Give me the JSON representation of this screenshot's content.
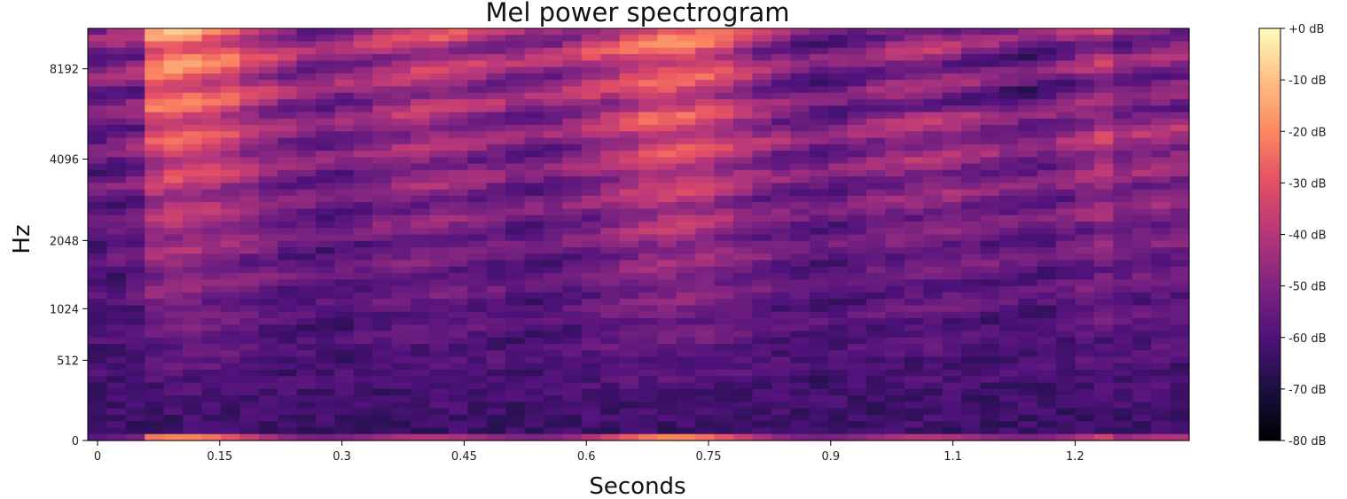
{
  "chart_data": {
    "type": "heatmap",
    "title": "Mel power spectrogram",
    "xlabel": "Seconds",
    "ylabel": "Hz",
    "colormap": "magma",
    "x_ticks": [
      {
        "value": 0,
        "label": "0"
      },
      {
        "value": 0.15,
        "label": "0.15"
      },
      {
        "value": 0.3,
        "label": "0.3"
      },
      {
        "value": 0.45,
        "label": "0.45"
      },
      {
        "value": 0.6,
        "label": "0.6"
      },
      {
        "value": 0.75,
        "label": "0.75"
      },
      {
        "value": 0.9,
        "label": "0.9"
      },
      {
        "value": 1.05,
        "label": "1.1"
      },
      {
        "value": 1.2,
        "label": "1.2"
      }
    ],
    "y_ticks": [
      {
        "value": 0,
        "label": "0"
      },
      {
        "value": 512,
        "label": "512"
      },
      {
        "value": 1024,
        "label": "1024"
      },
      {
        "value": 2048,
        "label": "2048"
      },
      {
        "value": 4096,
        "label": "4096"
      },
      {
        "value": 8192,
        "label": "8192"
      }
    ],
    "xlim": [
      -0.012,
      1.34
    ],
    "ylim": [
      0,
      11025
    ],
    "colorbar": {
      "range": [
        -80,
        0
      ],
      "ticks": [
        {
          "value": 0,
          "label": "+0 dB"
        },
        {
          "value": -10,
          "label": "-10 dB"
        },
        {
          "value": -20,
          "label": "-20 dB"
        },
        {
          "value": -30,
          "label": "-30 dB"
        },
        {
          "value": -40,
          "label": "-40 dB"
        },
        {
          "value": -50,
          "label": "-50 dB"
        },
        {
          "value": -60,
          "label": "-60 dB"
        },
        {
          "value": -70,
          "label": "-70 dB"
        },
        {
          "value": -80,
          "label": "-80 dB"
        }
      ]
    },
    "grid": false
  }
}
